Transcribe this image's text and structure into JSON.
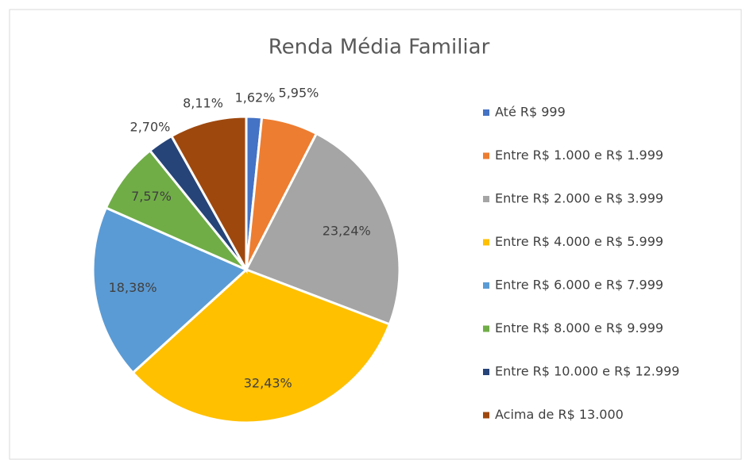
{
  "chart_data": {
    "type": "pie",
    "title": "Renda Média Familiar",
    "categories": [
      "Até R$ 999",
      "Entre R$ 1.000 e R$ 1.999",
      "Entre R$ 2.000 e R$ 3.999",
      "Entre R$ 4.000 e R$ 5.999",
      "Entre R$ 6.000 e R$ 7.999",
      "Entre R$ 8.000 e R$ 9.999",
      "Entre R$ 10.000 e R$ 12.999",
      "Acima de R$ 13.000"
    ],
    "values": [
      1.62,
      5.95,
      23.24,
      32.43,
      18.38,
      7.57,
      2.7,
      8.11
    ],
    "value_labels": [
      "1,62%",
      "5,95%",
      "23,24%",
      "32,43%",
      "18,38%",
      "7,57%",
      "2,70%",
      "8,11%"
    ],
    "colors": [
      "#4472c4",
      "#ed7d31",
      "#a5a5a5",
      "#ffc000",
      "#5b9bd5",
      "#70ad47",
      "#264478",
      "#9e480e"
    ],
    "legend": "right"
  }
}
